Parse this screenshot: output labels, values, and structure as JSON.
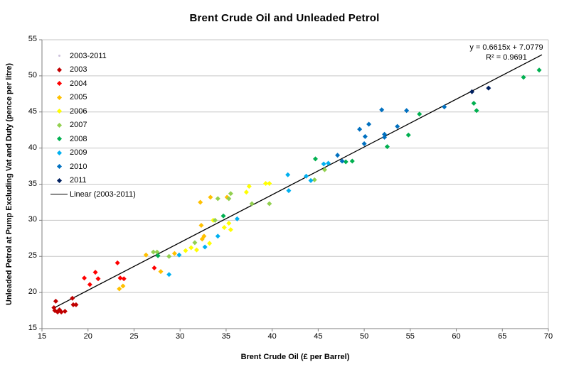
{
  "chart_data": {
    "type": "scatter",
    "title": "Brent Crude Oil and Unleaded Petrol",
    "xlabel": "Brent Crude Oil (£ per Barrel)",
    "ylabel": "Unleaded Petrol at Pump Excluding Vat and Duty (pence per litre)",
    "xlim": [
      15,
      70
    ],
    "ylim": [
      15,
      55
    ],
    "x_ticks": [
      15,
      20,
      25,
      30,
      35,
      40,
      45,
      50,
      55,
      60,
      65,
      70
    ],
    "y_ticks": [
      15,
      20,
      25,
      30,
      35,
      40,
      45,
      50,
      55
    ],
    "grid": "horizontal-only",
    "legend_position": "inside-top-left",
    "annotations": {
      "equation": "y = 0.6615x + 7.0779",
      "r_squared": "R² = 0.9691"
    },
    "trendline": {
      "label": "Linear (2003-2011)",
      "color": "#000000",
      "slope": 0.6615,
      "intercept": 7.0779,
      "r_squared": 0.9691,
      "x_start": 16.3,
      "x_end": 69.3
    },
    "series": [
      {
        "name": "2003-2011",
        "color": "#CCC0DA",
        "marker": "dot",
        "points": []
      },
      {
        "name": "2003",
        "color": "#C00000",
        "marker": "diamond",
        "points": [
          [
            16.3,
            17.9
          ],
          [
            16.4,
            17.5
          ],
          [
            16.5,
            18.8
          ],
          [
            16.7,
            17.3
          ],
          [
            16.9,
            17.6
          ],
          [
            17.1,
            17.3
          ],
          [
            17.5,
            17.4
          ],
          [
            18.3,
            19.2
          ],
          [
            18.4,
            18.3
          ],
          [
            18.7,
            18.3
          ]
        ]
      },
      {
        "name": "2004",
        "color": "#FF0000",
        "marker": "diamond",
        "points": [
          [
            19.6,
            22.0
          ],
          [
            20.2,
            21.1
          ],
          [
            20.8,
            22.8
          ],
          [
            21.1,
            21.9
          ],
          [
            23.2,
            24.1
          ],
          [
            23.5,
            22.0
          ],
          [
            23.9,
            21.9
          ],
          [
            27.2,
            23.4
          ]
        ]
      },
      {
        "name": "2005",
        "color": "#FFC000",
        "marker": "diamond",
        "points": [
          [
            23.4,
            20.5
          ],
          [
            23.8,
            20.9
          ],
          [
            26.3,
            25.2
          ],
          [
            27.9,
            22.9
          ],
          [
            29.4,
            25.4
          ],
          [
            32.2,
            32.5
          ],
          [
            32.3,
            29.3
          ],
          [
            32.4,
            27.4
          ],
          [
            32.6,
            27.8
          ],
          [
            33.3,
            33.2
          ],
          [
            35.1,
            33.2
          ]
        ]
      },
      {
        "name": "2006",
        "color": "#FFFF00",
        "marker": "diamond",
        "points": [
          [
            30.6,
            25.8
          ],
          [
            31.2,
            26.2
          ],
          [
            31.8,
            25.9
          ],
          [
            33.2,
            26.8
          ],
          [
            33.6,
            30.0
          ],
          [
            34.8,
            29.0
          ],
          [
            35.3,
            29.6
          ],
          [
            35.5,
            28.7
          ],
          [
            37.2,
            33.9
          ],
          [
            37.5,
            34.7
          ],
          [
            39.3,
            35.1
          ],
          [
            39.7,
            35.1
          ]
        ]
      },
      {
        "name": "2007",
        "color": "#92D050",
        "marker": "diamond",
        "points": [
          [
            27.1,
            25.6
          ],
          [
            27.5,
            25.6
          ],
          [
            28.8,
            25.0
          ],
          [
            31.6,
            26.9
          ],
          [
            33.8,
            30.0
          ],
          [
            34.1,
            33.0
          ],
          [
            35.3,
            33.0
          ],
          [
            35.5,
            33.7
          ],
          [
            37.8,
            32.3
          ],
          [
            39.7,
            32.3
          ],
          [
            44.6,
            35.6
          ],
          [
            45.7,
            37.0
          ]
        ]
      },
      {
        "name": "2008",
        "color": "#00B050",
        "marker": "diamond",
        "points": [
          [
            27.6,
            25.1
          ],
          [
            34.7,
            30.6
          ],
          [
            44.7,
            38.5
          ],
          [
            48.0,
            38.1
          ],
          [
            48.7,
            38.2
          ],
          [
            52.5,
            40.2
          ],
          [
            54.8,
            41.8
          ],
          [
            56.0,
            44.7
          ],
          [
            61.9,
            46.2
          ],
          [
            62.2,
            45.2
          ],
          [
            67.3,
            49.8
          ],
          [
            69.0,
            50.8
          ]
        ]
      },
      {
        "name": "2009",
        "color": "#00B0F0",
        "marker": "diamond",
        "points": [
          [
            28.8,
            22.5
          ],
          [
            29.9,
            25.2
          ],
          [
            32.7,
            26.3
          ],
          [
            34.1,
            27.8
          ],
          [
            36.2,
            30.2
          ],
          [
            41.7,
            36.3
          ],
          [
            41.8,
            34.1
          ],
          [
            43.7,
            36.1
          ],
          [
            44.2,
            35.5
          ],
          [
            45.6,
            37.8
          ],
          [
            46.1,
            37.9
          ]
        ]
      },
      {
        "name": "2010",
        "color": "#0070C0",
        "marker": "diamond",
        "points": [
          [
            47.1,
            39.0
          ],
          [
            47.6,
            38.2
          ],
          [
            49.5,
            42.6
          ],
          [
            50.0,
            40.6
          ],
          [
            50.1,
            41.6
          ],
          [
            50.5,
            43.3
          ],
          [
            51.9,
            45.3
          ],
          [
            52.2,
            41.9
          ],
          [
            52.2,
            41.5
          ],
          [
            53.6,
            43.0
          ],
          [
            54.6,
            45.2
          ],
          [
            58.7,
            45.7
          ]
        ]
      },
      {
        "name": "2011",
        "color": "#002060",
        "marker": "diamond",
        "points": [
          [
            61.7,
            47.8
          ],
          [
            63.5,
            48.3
          ]
        ]
      }
    ],
    "styles": {
      "gridline_color": "#C6C6C6",
      "axis_color": "#7F7F7F",
      "plot_border_color": "#C6C6C6"
    }
  }
}
